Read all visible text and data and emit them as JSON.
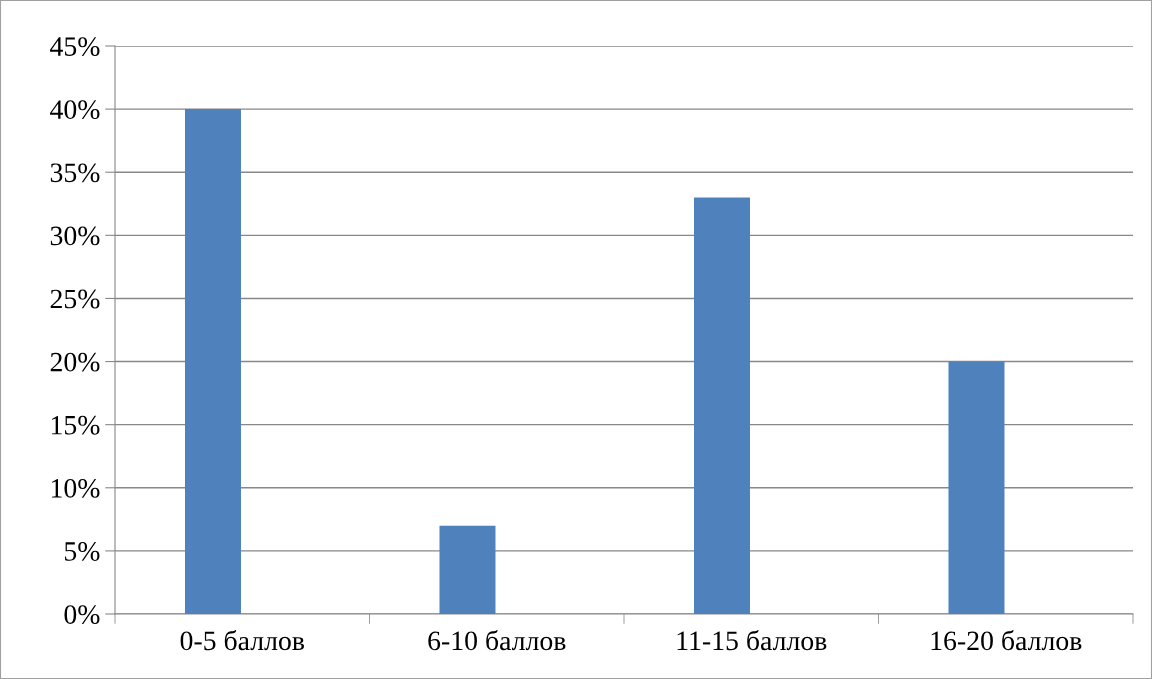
{
  "chart_data": {
    "type": "bar",
    "categories": [
      "0-5 баллов",
      "6-10 баллов",
      "11-15 баллов",
      "16-20 баллов"
    ],
    "values": [
      40,
      7,
      33,
      20
    ],
    "color": "#4f81bd",
    "ylim": [
      0,
      45
    ],
    "yticks": [
      {
        "value": 0,
        "label": "0%"
      },
      {
        "value": 5,
        "label": "5%"
      },
      {
        "value": 10,
        "label": "10%"
      },
      {
        "value": 15,
        "label": "15%"
      },
      {
        "value": 20,
        "label": "20%"
      },
      {
        "value": 25,
        "label": "25%"
      },
      {
        "value": 30,
        "label": "30%"
      },
      {
        "value": 35,
        "label": "35%"
      },
      {
        "value": 40,
        "label": "40%"
      },
      {
        "value": 45,
        "label": "45%"
      }
    ],
    "grid": "y",
    "legend": false
  }
}
